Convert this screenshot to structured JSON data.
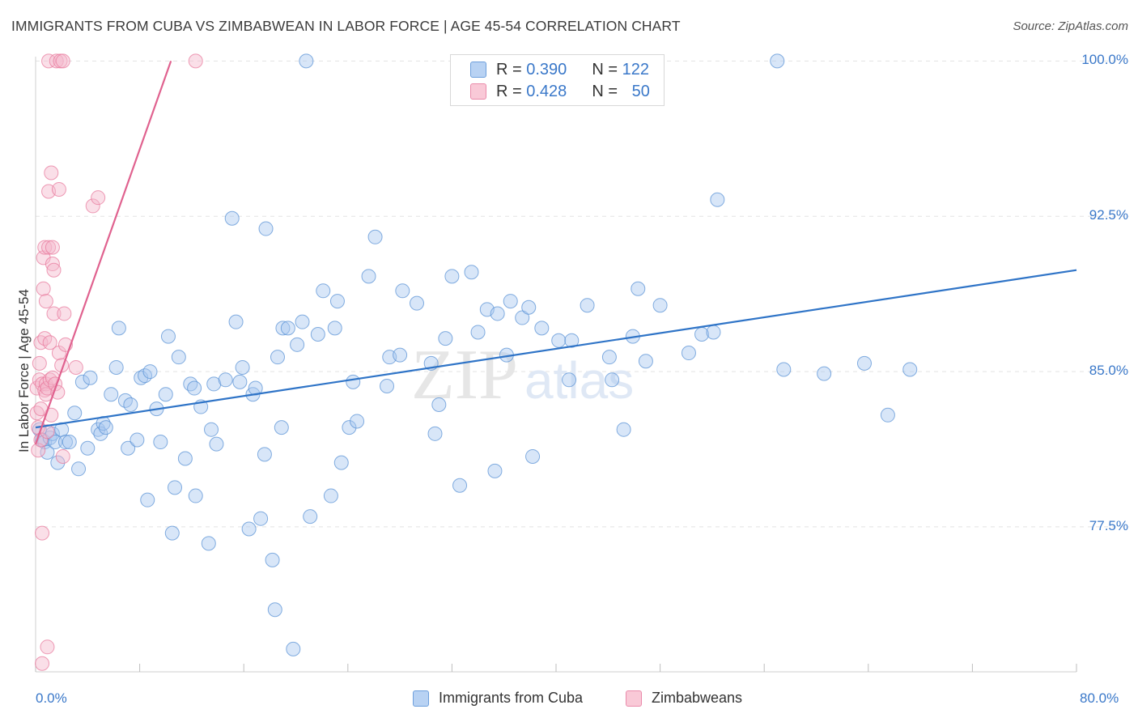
{
  "header": {
    "title": "IMMIGRANTS FROM CUBA VS ZIMBABWEAN IN LABOR FORCE | AGE 45-54 CORRELATION CHART",
    "source": "Source: ZipAtlas.com"
  },
  "watermark": {
    "zip": "ZIP",
    "atlas": "atlas"
  },
  "legend_top": {
    "r_label": "R =",
    "n_label": "N =",
    "rows": [
      {
        "r": "0.390",
        "n": "122",
        "color": "#a9c8ef"
      },
      {
        "r": "0.428",
        "n": "50",
        "color": "#f5b9cc"
      }
    ]
  },
  "legend_bottom": [
    "Immigrants from Cuba",
    "Zimbabweans"
  ],
  "colors": {
    "blue": "#5b93d6",
    "blue_fill": "#a9c8ef",
    "blue_line": "#2f74c7",
    "pink": "#e87b9e",
    "pink_fill": "#f5b9cc",
    "pink_line": "#e0628f",
    "tick_label": "#3a78c9",
    "grid": "#e3e3e3"
  },
  "chart_data": {
    "type": "scatter",
    "title": "IMMIGRANTS FROM CUBA VS ZIMBABWEAN IN LABOR FORCE | AGE 45-54 CORRELATION CHART",
    "xlabel": "",
    "ylabel": "In Labor Force | Age 45-54",
    "xlim": [
      0,
      80
    ],
    "ylim": [
      70.5,
      100.6
    ],
    "x_tick_labels": [
      "0.0%",
      "80.0%"
    ],
    "y_ticks": [
      77.5,
      85.0,
      92.5,
      100.0
    ],
    "y_tick_labels": [
      "77.5%",
      "85.0%",
      "92.5%",
      "100.0%"
    ],
    "grid": true,
    "legend_position": "top-center",
    "series": [
      {
        "name": "Immigrants from Cuba",
        "R": 0.39,
        "N": 122,
        "trend": [
          [
            0,
            82.3
          ],
          [
            80,
            89.9
          ]
        ],
        "points": [
          [
            0.3,
            82.2
          ],
          [
            0.5,
            81.7
          ],
          [
            0.7,
            81.6
          ],
          [
            0.9,
            81.1
          ],
          [
            1.1,
            81.8
          ],
          [
            1.3,
            82.0
          ],
          [
            1.5,
            81.6
          ],
          [
            1.7,
            80.6
          ],
          [
            2.0,
            82.2
          ],
          [
            2.3,
            81.6
          ],
          [
            2.6,
            81.6
          ],
          [
            3.0,
            83.0
          ],
          [
            3.3,
            80.3
          ],
          [
            3.6,
            84.5
          ],
          [
            4.0,
            81.3
          ],
          [
            4.2,
            84.7
          ],
          [
            4.8,
            82.2
          ],
          [
            5.0,
            82.0
          ],
          [
            5.2,
            82.5
          ],
          [
            5.4,
            82.3
          ],
          [
            5.8,
            83.9
          ],
          [
            6.2,
            85.2
          ],
          [
            6.4,
            87.1
          ],
          [
            6.9,
            83.6
          ],
          [
            7.1,
            81.3
          ],
          [
            7.3,
            83.4
          ],
          [
            7.8,
            81.7
          ],
          [
            8.1,
            84.7
          ],
          [
            8.4,
            84.8
          ],
          [
            8.6,
            78.8
          ],
          [
            8.8,
            85.0
          ],
          [
            9.3,
            83.2
          ],
          [
            9.6,
            81.6
          ],
          [
            10.0,
            83.9
          ],
          [
            10.2,
            86.7
          ],
          [
            10.5,
            77.2
          ],
          [
            10.7,
            79.4
          ],
          [
            11.0,
            85.7
          ],
          [
            11.5,
            80.8
          ],
          [
            11.9,
            84.4
          ],
          [
            12.2,
            84.2
          ],
          [
            12.3,
            79.0
          ],
          [
            12.7,
            83.3
          ],
          [
            13.3,
            76.7
          ],
          [
            13.5,
            82.2
          ],
          [
            13.7,
            84.4
          ],
          [
            13.9,
            81.5
          ],
          [
            14.6,
            84.6
          ],
          [
            15.1,
            92.4
          ],
          [
            15.4,
            87.4
          ],
          [
            15.7,
            84.5
          ],
          [
            15.9,
            85.2
          ],
          [
            16.4,
            77.4
          ],
          [
            16.7,
            83.9
          ],
          [
            16.9,
            84.2
          ],
          [
            17.3,
            77.9
          ],
          [
            17.6,
            81.0
          ],
          [
            17.7,
            91.9
          ],
          [
            18.2,
            75.9
          ],
          [
            18.4,
            73.5
          ],
          [
            18.6,
            85.7
          ],
          [
            18.9,
            82.3
          ],
          [
            19.0,
            87.1
          ],
          [
            19.4,
            87.1
          ],
          [
            19.8,
            71.6
          ],
          [
            20.1,
            86.3
          ],
          [
            20.5,
            87.4
          ],
          [
            20.8,
            100.0
          ],
          [
            21.1,
            78.0
          ],
          [
            21.7,
            86.8
          ],
          [
            22.1,
            88.9
          ],
          [
            22.7,
            79.0
          ],
          [
            23.0,
            87.1
          ],
          [
            23.2,
            88.4
          ],
          [
            23.5,
            80.6
          ],
          [
            24.1,
            82.3
          ],
          [
            24.4,
            84.5
          ],
          [
            24.7,
            82.6
          ],
          [
            25.6,
            89.6
          ],
          [
            26.1,
            91.5
          ],
          [
            27.0,
            84.3
          ],
          [
            27.2,
            85.7
          ],
          [
            28.0,
            85.8
          ],
          [
            28.2,
            88.9
          ],
          [
            29.3,
            88.3
          ],
          [
            30.4,
            85.4
          ],
          [
            30.7,
            82.0
          ],
          [
            31.0,
            83.4
          ],
          [
            31.5,
            86.6
          ],
          [
            32.0,
            89.6
          ],
          [
            32.6,
            79.5
          ],
          [
            33.5,
            89.8
          ],
          [
            34.0,
            86.9
          ],
          [
            34.7,
            88.0
          ],
          [
            35.3,
            80.2
          ],
          [
            35.5,
            87.8
          ],
          [
            36.2,
            85.8
          ],
          [
            36.5,
            88.4
          ],
          [
            37.4,
            87.6
          ],
          [
            37.9,
            88.1
          ],
          [
            38.2,
            80.9
          ],
          [
            38.9,
            87.1
          ],
          [
            40.2,
            86.5
          ],
          [
            41.0,
            84.6
          ],
          [
            41.2,
            86.5
          ],
          [
            42.4,
            88.2
          ],
          [
            44.1,
            85.7
          ],
          [
            44.3,
            84.6
          ],
          [
            45.2,
            82.2
          ],
          [
            45.9,
            86.7
          ],
          [
            46.3,
            89.0
          ],
          [
            46.9,
            85.5
          ],
          [
            48.0,
            88.2
          ],
          [
            50.2,
            85.9
          ],
          [
            51.2,
            86.8
          ],
          [
            52.1,
            86.9
          ],
          [
            52.4,
            93.3
          ],
          [
            57.0,
            100.0
          ],
          [
            57.5,
            85.1
          ],
          [
            60.6,
            84.9
          ],
          [
            63.7,
            85.4
          ],
          [
            65.5,
            82.9
          ],
          [
            67.2,
            85.1
          ]
        ]
      },
      {
        "name": "Zimbabweans",
        "R": 0.428,
        "N": 50,
        "trend": [
          [
            0,
            81.5
          ],
          [
            10.4,
            100.0
          ]
        ],
        "points": [
          [
            0.1,
            84.2
          ],
          [
            0.1,
            83.0
          ],
          [
            0.2,
            81.2
          ],
          [
            0.2,
            82.3
          ],
          [
            0.3,
            84.6
          ],
          [
            0.3,
            85.4
          ],
          [
            0.4,
            86.4
          ],
          [
            0.4,
            81.7
          ],
          [
            0.5,
            84.4
          ],
          [
            0.5,
            77.2
          ],
          [
            0.5,
            70.9
          ],
          [
            0.6,
            89.0
          ],
          [
            0.6,
            90.5
          ],
          [
            0.7,
            86.6
          ],
          [
            0.7,
            91.0
          ],
          [
            0.7,
            84.1
          ],
          [
            0.8,
            84.4
          ],
          [
            0.8,
            83.9
          ],
          [
            0.8,
            88.4
          ],
          [
            0.9,
            71.7
          ],
          [
            0.9,
            84.2
          ],
          [
            1.0,
            91.0
          ],
          [
            1.0,
            93.7
          ],
          [
            1.0,
            100.0
          ],
          [
            1.1,
            86.4
          ],
          [
            1.1,
            84.6
          ],
          [
            1.2,
            94.6
          ],
          [
            1.2,
            82.9
          ],
          [
            1.3,
            84.7
          ],
          [
            1.3,
            90.2
          ],
          [
            1.3,
            91.0
          ],
          [
            1.4,
            87.8
          ],
          [
            1.4,
            89.9
          ],
          [
            1.5,
            84.4
          ],
          [
            1.6,
            100.0
          ],
          [
            1.7,
            84.0
          ],
          [
            1.8,
            93.8
          ],
          [
            1.8,
            85.9
          ],
          [
            1.9,
            100.0
          ],
          [
            2.0,
            85.3
          ],
          [
            2.1,
            80.9
          ],
          [
            2.1,
            100.0
          ],
          [
            2.2,
            87.8
          ],
          [
            2.3,
            86.3
          ],
          [
            3.1,
            85.2
          ],
          [
            4.4,
            93.0
          ],
          [
            4.8,
            93.4
          ],
          [
            12.3,
            100.0
          ],
          [
            0.4,
            83.2
          ],
          [
            0.9,
            82.1
          ]
        ]
      }
    ]
  }
}
